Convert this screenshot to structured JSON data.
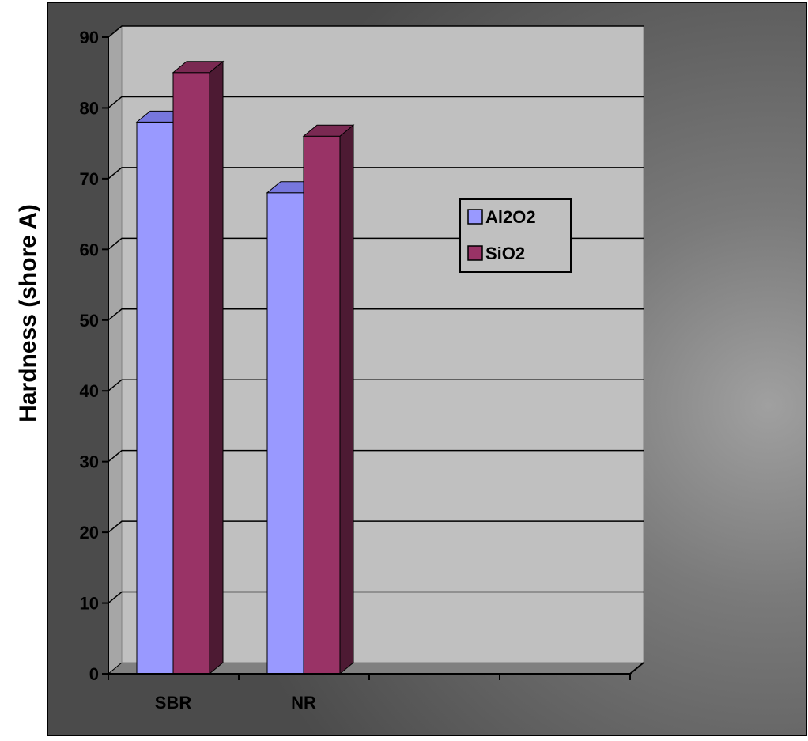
{
  "chart_data": {
    "type": "bar",
    "title": "",
    "xlabel": "",
    "ylabel": "Hardness (shore A)",
    "categories": [
      "SBR",
      "NR",
      "",
      ""
    ],
    "series": [
      {
        "name": "Al2O2",
        "values": [
          78,
          68,
          null,
          null
        ],
        "color": "#9999ff",
        "side_color": "#5a5acc",
        "top_color": "#7777dd"
      },
      {
        "name": "SiO2",
        "values": [
          85,
          76,
          null,
          null
        ],
        "color": "#993366",
        "side_color": "#4d1a33",
        "top_color": "#7a2952"
      }
    ],
    "ylim": [
      0,
      90
    ],
    "yticks": [
      0,
      10,
      20,
      30,
      40,
      50,
      60,
      70,
      80,
      90
    ],
    "grid": true,
    "legend_position": "right",
    "colors": {
      "plot_wall": "#c0c0c0",
      "plot_floor": "#808080",
      "outer_background_light": "#9a9a9a",
      "outer_background_dark": "#4a4a4a",
      "gridline": "#000000"
    }
  }
}
